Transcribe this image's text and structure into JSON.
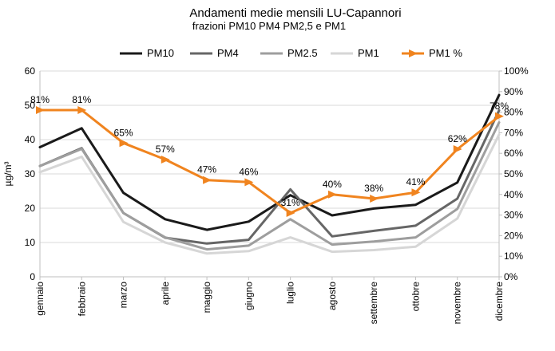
{
  "chart_data": {
    "type": "line",
    "title": "Andamenti medie mensili LU-Capannori",
    "subtitle": "frazioni PM10 PM4 PM2,5 e PM1",
    "ylabel": "µg/m³",
    "y2label": "",
    "categories": [
      "gennaio",
      "febbraio",
      "marzo",
      "aprile",
      "maggio",
      "giugno",
      "luglio",
      "agosto",
      "settembre",
      "ottobre",
      "novembre",
      "dicembre"
    ],
    "ylim": [
      0,
      60
    ],
    "y_ticks": [
      "0",
      "10",
      "20",
      "30",
      "40",
      "50",
      "60"
    ],
    "y2lim": [
      0,
      100
    ],
    "y2_ticks": [
      "0%",
      "10%",
      "20%",
      "30%",
      "40%",
      "50%",
      "60%",
      "70%",
      "80%",
      "90%",
      "100%"
    ],
    "grid": true,
    "legend_position": "top",
    "series": [
      {
        "name": "PM10",
        "axis": "left",
        "color": "#1a1a1a",
        "values": [
          37.8,
          43.3,
          24.5,
          16.8,
          13.7,
          16.1,
          23.8,
          17.9,
          19.9,
          21.0,
          27.5,
          53.0
        ]
      },
      {
        "name": "PM4",
        "axis": "left",
        "color": "#666666",
        "values": [
          32.3,
          37.5,
          18.6,
          11.4,
          9.7,
          10.8,
          25.5,
          11.8,
          13.4,
          14.9,
          22.8,
          48.5
        ]
      },
      {
        "name": "PM2.5",
        "axis": "left",
        "color": "#9e9e9e",
        "values": [
          32.3,
          37.3,
          18.6,
          11.5,
          8.0,
          9.1,
          16.8,
          9.4,
          10.3,
          11.5,
          19.8,
          45.0
        ]
      },
      {
        "name": "PM1",
        "axis": "left",
        "color": "#d6d6d6",
        "values": [
          30.5,
          35.0,
          16.0,
          10.0,
          6.8,
          7.5,
          11.5,
          7.3,
          7.8,
          8.8,
          17.0,
          41.5
        ]
      },
      {
        "name": "PM1 %",
        "axis": "right",
        "color": "#f0841f",
        "marker": "triangle-right",
        "values": [
          81,
          81,
          65,
          57,
          47,
          46,
          31,
          40,
          38,
          41,
          62,
          78
        ]
      }
    ],
    "data_labels": [
      "81%",
      "81%",
      "65%",
      "57%",
      "47%",
      "46%",
      "31%",
      "40%",
      "38%",
      "41%",
      "62%",
      "78%"
    ]
  }
}
